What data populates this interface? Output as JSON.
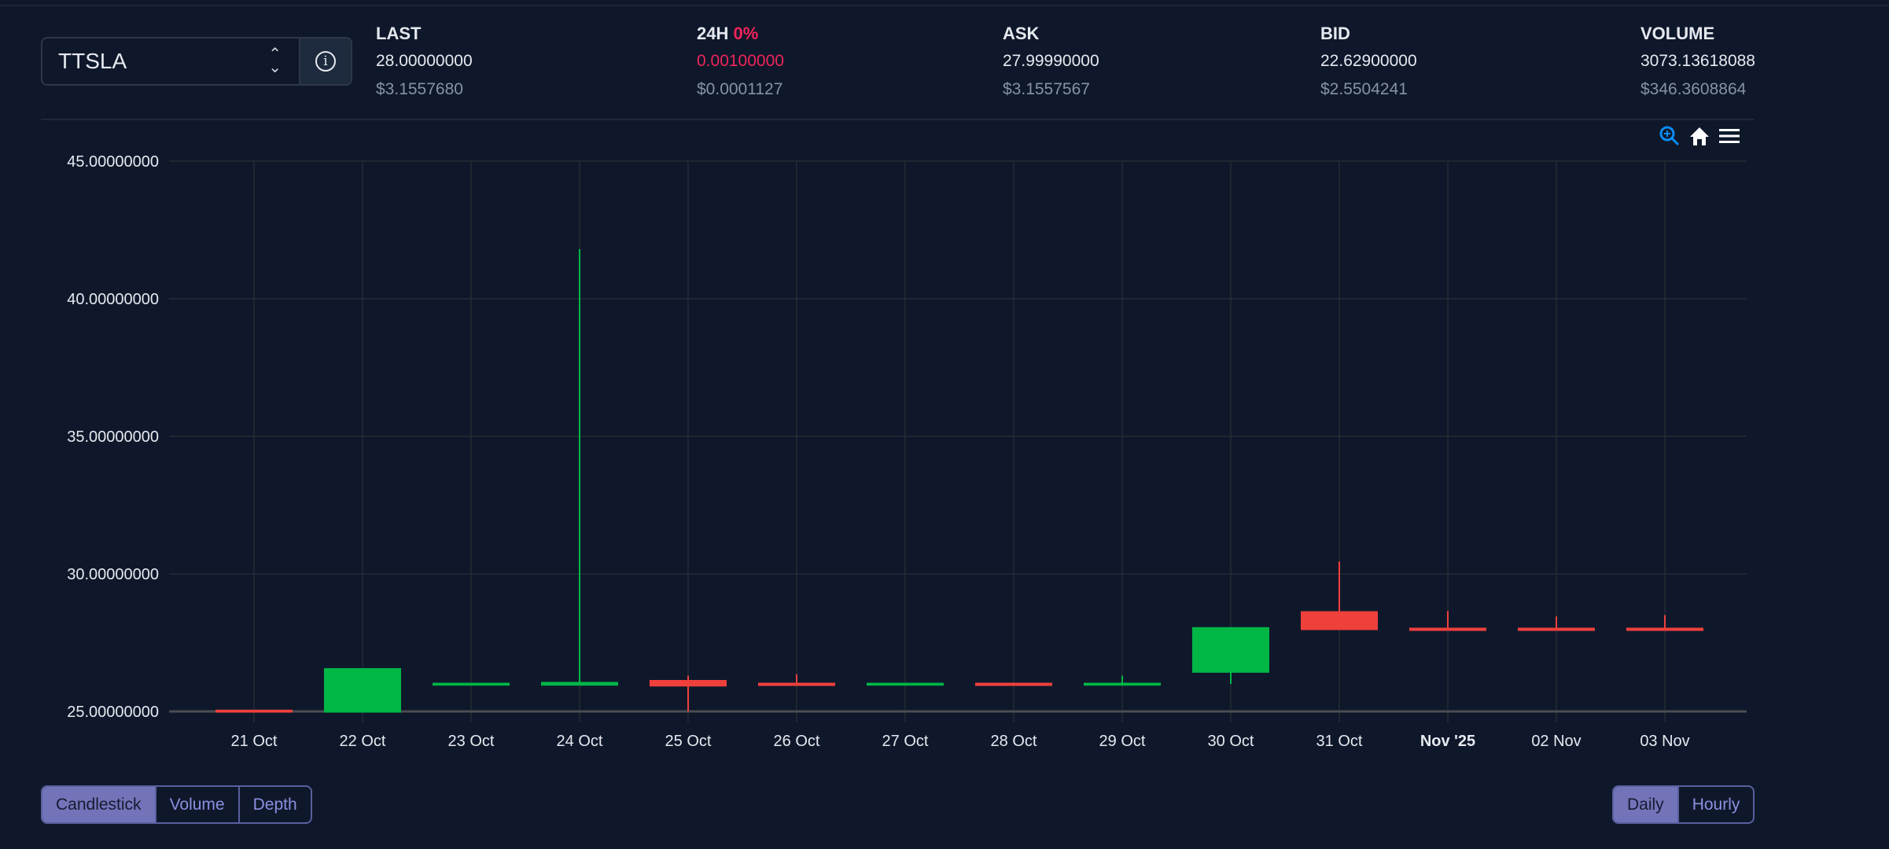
{
  "pair_selector": {
    "value": "TTSLA",
    "info_icon": "info-circle-icon"
  },
  "stats": {
    "last": {
      "label": "LAST",
      "value": "28.00000000",
      "usd": "$3.1557680"
    },
    "change_24h": {
      "label": "24H",
      "percent": "0%",
      "value": "0.00100000",
      "usd": "$0.0001127"
    },
    "ask": {
      "label": "ASK",
      "value": "27.99990000",
      "usd": "$3.1557567"
    },
    "bid": {
      "label": "BID",
      "value": "22.62900000",
      "usd": "$2.5504241"
    },
    "volume": {
      "label": "VOLUME",
      "value": "3073.13618088",
      "usd": "$346.3608864"
    }
  },
  "toolbar": {
    "icons": [
      "zoom-in-icon",
      "home-icon",
      "menu-icon"
    ]
  },
  "chart_data": {
    "type": "candlestick",
    "categories": [
      "21 Oct",
      "22 Oct",
      "23 Oct",
      "24 Oct",
      "25 Oct",
      "26 Oct",
      "27 Oct",
      "28 Oct",
      "29 Oct",
      "30 Oct",
      "31 Oct",
      "Nov '25",
      "02 Nov",
      "03 Nov"
    ],
    "ohlc": [
      [
        25.02,
        25.02,
        25.0,
        25.0
      ],
      [
        25.0,
        26.55,
        25.0,
        26.53
      ],
      [
        25.98,
        26.0,
        25.98,
        26.0
      ],
      [
        25.98,
        41.8,
        25.98,
        26.03
      ],
      [
        26.1,
        26.3,
        25.0,
        25.95
      ],
      [
        26.0,
        26.35,
        25.97,
        25.97
      ],
      [
        25.98,
        26.0,
        25.98,
        26.0
      ],
      [
        26.0,
        26.05,
        25.97,
        25.97
      ],
      [
        25.98,
        26.3,
        25.98,
        26.0
      ],
      [
        26.45,
        28.02,
        26.0,
        28.02
      ],
      [
        28.6,
        30.45,
        28.0,
        28.0
      ],
      [
        28.0,
        28.65,
        27.97,
        27.97
      ],
      [
        28.0,
        28.45,
        27.97,
        27.97
      ],
      [
        28.0,
        28.5,
        27.97,
        27.97
      ]
    ],
    "y_ticks": [
      "25.00000000",
      "30.00000000",
      "35.00000000",
      "40.00000000",
      "45.00000000"
    ],
    "ylim": [
      25,
      45
    ],
    "grid": true,
    "colors": {
      "up": "#00b746",
      "down": "#ef403c"
    }
  },
  "chart_type_buttons": [
    {
      "label": "Candlestick",
      "active": true
    },
    {
      "label": "Volume",
      "active": false
    },
    {
      "label": "Depth",
      "active": false
    }
  ],
  "interval_buttons": [
    {
      "label": "Daily",
      "active": true
    },
    {
      "label": "Hourly",
      "active": false
    }
  ]
}
